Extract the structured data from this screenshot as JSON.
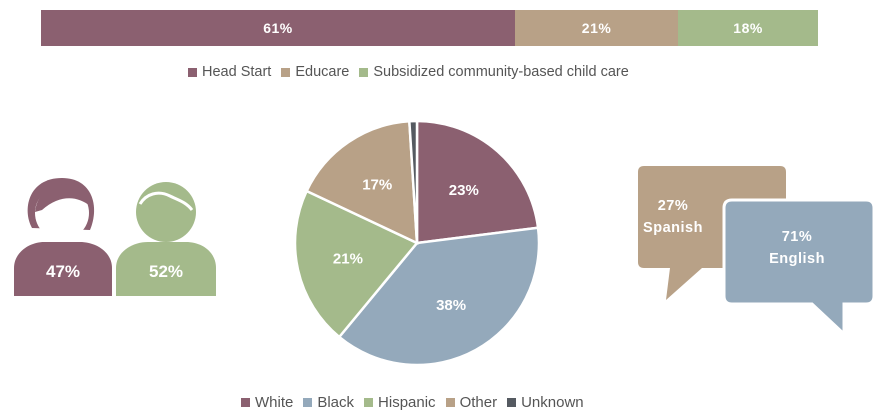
{
  "colors": {
    "head_start": "#8b6070",
    "educare": "#b8a187",
    "subsidized": "#a4ba8b",
    "white": "#8b6070",
    "black": "#94a9bb",
    "hispanic": "#a4ba8b",
    "other": "#b8a187",
    "unknown": "#555a61"
  },
  "chart_data": [
    {
      "type": "bar",
      "orientation": "horizontal-stacked",
      "series": [
        {
          "name": "Head Start",
          "value": 61,
          "label": "61%"
        },
        {
          "name": "Educare",
          "value": 21,
          "label": "21%"
        },
        {
          "name": "Subsidized community-based child care",
          "value": 18,
          "label": "18%"
        }
      ],
      "legend": [
        "Head Start",
        "Educare",
        "Subsidized community-based child care"
      ],
      "legend_position": "bottom"
    },
    {
      "type": "pie",
      "slices": [
        {
          "name": "White",
          "value": 23,
          "label": "23%"
        },
        {
          "name": "Black",
          "value": 38,
          "label": "38%"
        },
        {
          "name": "Hispanic",
          "value": 21,
          "label": "21%"
        },
        {
          "name": "Other",
          "value": 17,
          "label": "17%"
        },
        {
          "name": "Unknown",
          "value": 1,
          "label": ""
        }
      ],
      "legend": [
        "White",
        "Black",
        "Hispanic",
        "Other",
        "Unknown"
      ],
      "legend_position": "bottom"
    },
    {
      "type": "pictogram",
      "items": [
        {
          "icon": "female-person-icon",
          "value": 47,
          "label": "47%"
        },
        {
          "icon": "male-person-icon",
          "value": 52,
          "label": "52%"
        }
      ]
    },
    {
      "type": "speech-bubbles",
      "items": [
        {
          "language": "Spanish",
          "value": 27,
          "label": "27%"
        },
        {
          "language": "English",
          "value": 71,
          "label": "71%"
        }
      ]
    }
  ]
}
